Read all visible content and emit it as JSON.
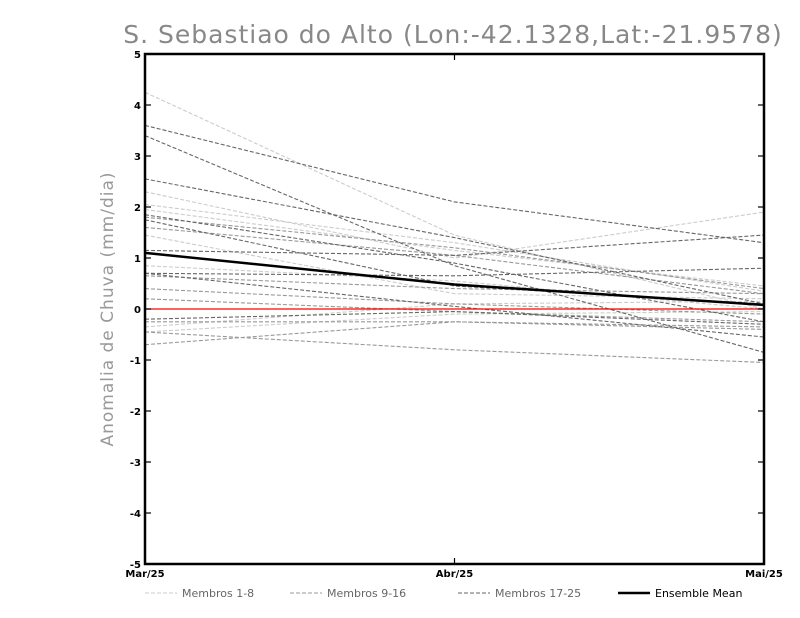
{
  "chart_data": {
    "type": "line",
    "title": "S. Sebastiao do Alto (Lon:-42.1328,Lat:-21.9578)",
    "xlabel": "",
    "ylabel": "Anomalia de Chuva (mm/dia)",
    "categories": [
      "Mar/25",
      "Abr/25",
      "Mai/25"
    ],
    "ylim": [
      -5,
      5
    ],
    "yticks": [
      -5,
      -4,
      -3,
      -2,
      -1,
      0,
      1,
      2,
      3,
      4,
      5
    ],
    "ytick_labels": [
      "-5",
      "-4",
      "-3",
      "-2",
      "-1",
      "0",
      "1",
      "2",
      "3",
      "4",
      "5"
    ],
    "zero_line_color": "#ff0000",
    "grid": false,
    "legend_position": "bottom",
    "legend": [
      {
        "label": "Membros 1-8",
        "color": "#cccccc",
        "style": "dashed"
      },
      {
        "label": "Membros 9-16",
        "color": "#999999",
        "style": "dashed"
      },
      {
        "label": "Membros 17-25",
        "color": "#666666",
        "style": "dashed"
      },
      {
        "label": "Ensemble Mean",
        "color": "#000000",
        "style": "solid"
      }
    ],
    "groups": [
      {
        "color": "#cccccc",
        "members": [
          [
            4.25,
            1.45,
            0.0
          ],
          [
            2.3,
            1.0,
            1.9
          ],
          [
            2.05,
            1.3,
            0.35
          ],
          [
            1.95,
            1.15,
            0.45
          ],
          [
            1.45,
            0.3,
            0.2
          ],
          [
            0.85,
            0.55,
            0.0
          ],
          [
            -0.35,
            0.1,
            0.15
          ],
          [
            -0.45,
            -0.1,
            -0.05
          ]
        ]
      },
      {
        "color": "#999999",
        "members": [
          [
            1.8,
            1.2,
            0.4
          ],
          [
            1.6,
            1.05,
            0.3
          ],
          [
            0.65,
            0.4,
            0.3
          ],
          [
            0.4,
            0.1,
            -0.1
          ],
          [
            0.2,
            -0.05,
            -0.25
          ],
          [
            -0.25,
            -0.25,
            -0.4
          ],
          [
            -0.45,
            -0.8,
            -1.05
          ],
          [
            -0.7,
            -0.25,
            -0.35
          ]
        ]
      },
      {
        "color": "#666666",
        "members": [
          [
            3.6,
            2.1,
            1.3
          ],
          [
            3.4,
            0.85,
            -0.85
          ],
          [
            2.55,
            1.4,
            0.1
          ],
          [
            1.85,
            0.9,
            -0.25
          ],
          [
            1.75,
            0.45,
            0.1
          ],
          [
            1.15,
            1.05,
            1.45
          ],
          [
            0.7,
            0.65,
            0.8
          ],
          [
            0.7,
            0.05,
            -0.55
          ],
          [
            -0.2,
            -0.05,
            -0.3
          ]
        ]
      }
    ],
    "series": [
      {
        "name": "Ensemble Mean",
        "values": [
          1.1,
          0.48,
          0.08
        ]
      }
    ]
  }
}
